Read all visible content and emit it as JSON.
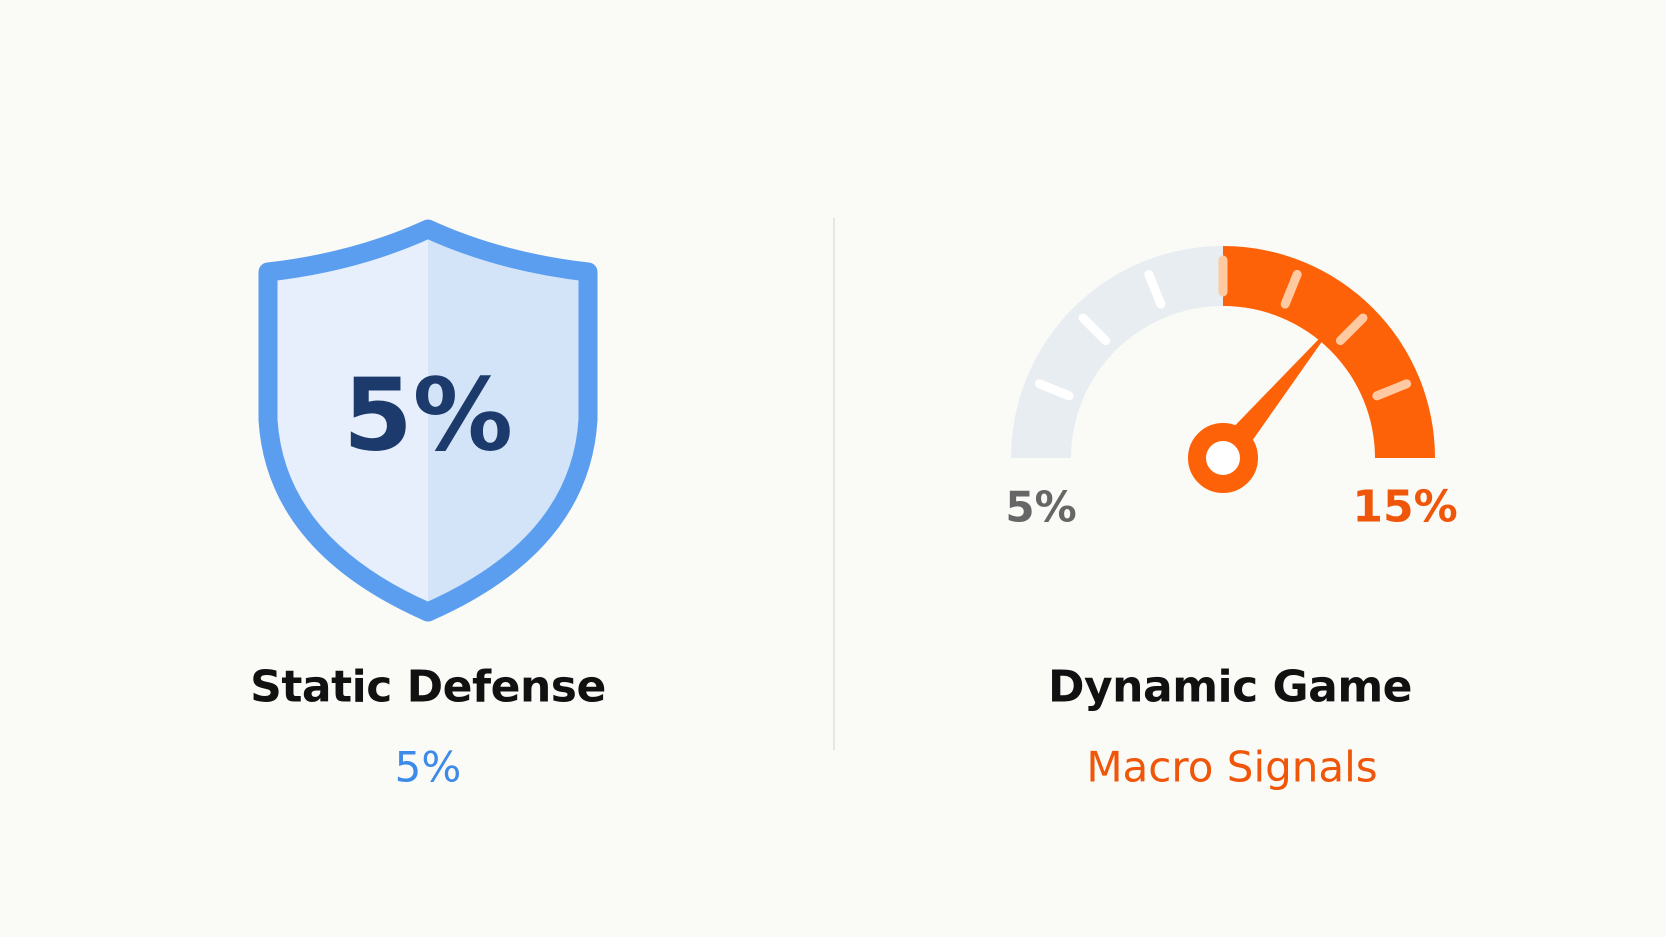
{
  "left_panel": {
    "shield_value": "5%",
    "title": "Static Defense",
    "subtitle": "5%",
    "colors": {
      "shield_border": "#5b9ef0",
      "shield_fill": "#dbe9fb",
      "value_text": "#1c3a6b",
      "subtitle": "#3d8ae8"
    }
  },
  "right_panel": {
    "gauge": {
      "min_label": "5%",
      "max_label": "15%",
      "needle_fraction": 0.72,
      "colors": {
        "track": "#e8edf2",
        "active": "#fe6208",
        "tick": "#ffffff",
        "tick_active": "#ffc9a1",
        "min_label": "#666666",
        "max_label": "#f0560a"
      }
    },
    "title": "Dynamic Game",
    "subtitle": "Macro Signals",
    "colors": {
      "subtitle": "#f0560a"
    }
  }
}
